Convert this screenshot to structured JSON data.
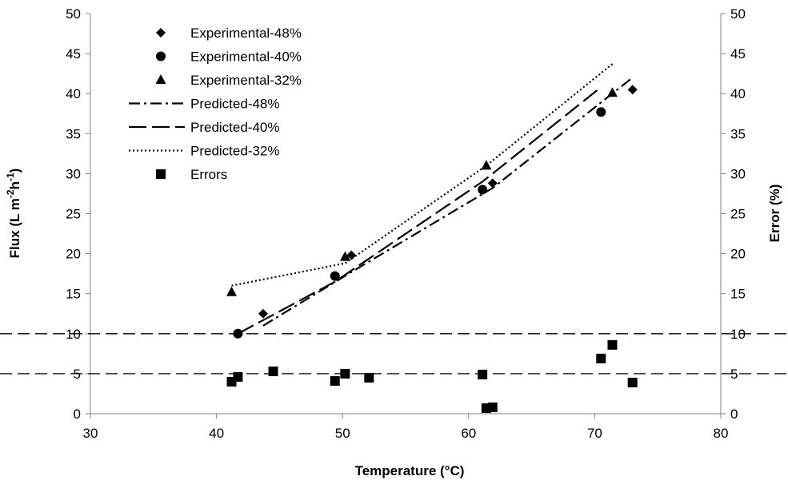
{
  "chart_data": {
    "type": "scatter",
    "xlabel": "Temperature (°C)",
    "ylabel_left": "Flux (L m-2h-1)",
    "ylabel_left_parts": [
      "Flux (L m",
      "-2",
      "h",
      "-1",
      ")"
    ],
    "ylabel_right": "Error (%)",
    "xlim": [
      30,
      80
    ],
    "ylim": [
      0,
      50
    ],
    "y2lim": [
      0,
      50
    ],
    "x_ticks": [
      "30",
      "40",
      "50",
      "60",
      "70",
      "80"
    ],
    "y_ticks": [
      "0",
      "5",
      "10",
      "15",
      "20",
      "25",
      "30",
      "35",
      "40",
      "45",
      "50"
    ],
    "y2_ticks": [
      "0",
      "5",
      "10",
      "15",
      "20",
      "25",
      "30",
      "35",
      "40",
      "45",
      "50"
    ],
    "grid": false,
    "legend_position": "top-left",
    "reference_lines": [
      5,
      10
    ],
    "series": [
      {
        "name": "Experimental-48%",
        "kind": "marker",
        "marker": "diamond",
        "axis": "left",
        "x": [
          43.7,
          50.7,
          61.9,
          73.0
        ],
        "y": [
          12.5,
          19.8,
          28.8,
          40.5
        ]
      },
      {
        "name": "Experimental-40%",
        "kind": "marker",
        "marker": "circle",
        "axis": "left",
        "x": [
          41.7,
          49.4,
          61.1,
          70.5
        ],
        "y": [
          10.0,
          17.2,
          28.0,
          37.7
        ]
      },
      {
        "name": "Experimental-32%",
        "kind": "marker",
        "marker": "triangle",
        "axis": "left",
        "x": [
          41.2,
          50.2,
          61.4,
          71.4
        ],
        "y": [
          15.2,
          19.6,
          31.0,
          40.1
        ]
      },
      {
        "name": "Predicted-48%",
        "kind": "line",
        "dash": "dashdot",
        "axis": "left",
        "x": [
          43.7,
          50.7,
          61.9,
          73.0
        ],
        "y": [
          11.0,
          17.7,
          28.2,
          42.0
        ]
      },
      {
        "name": "Predicted-40%",
        "kind": "line",
        "dash": "longdash",
        "axis": "left",
        "x": [
          41.7,
          49.4,
          61.1,
          70.5
        ],
        "y": [
          10.0,
          16.5,
          29.0,
          40.8
        ]
      },
      {
        "name": "Predicted-32%",
        "kind": "line",
        "dash": "dotted",
        "axis": "left",
        "x": [
          41.2,
          50.2,
          61.4,
          71.4
        ],
        "y": [
          16.0,
          18.8,
          31.0,
          43.7
        ]
      },
      {
        "name": "Errors",
        "kind": "marker",
        "marker": "square",
        "axis": "right",
        "x": [
          41.2,
          41.7,
          44.5,
          49.4,
          50.2,
          52.1,
          61.1,
          61.4,
          61.9,
          70.5,
          71.4,
          73.0
        ],
        "y": [
          4.0,
          4.6,
          5.3,
          4.1,
          5.0,
          4.5,
          4.9,
          0.7,
          0.8,
          6.9,
          8.6,
          3.9
        ]
      }
    ],
    "colors": {
      "ink": "#000000",
      "background": "#ffffff"
    }
  }
}
